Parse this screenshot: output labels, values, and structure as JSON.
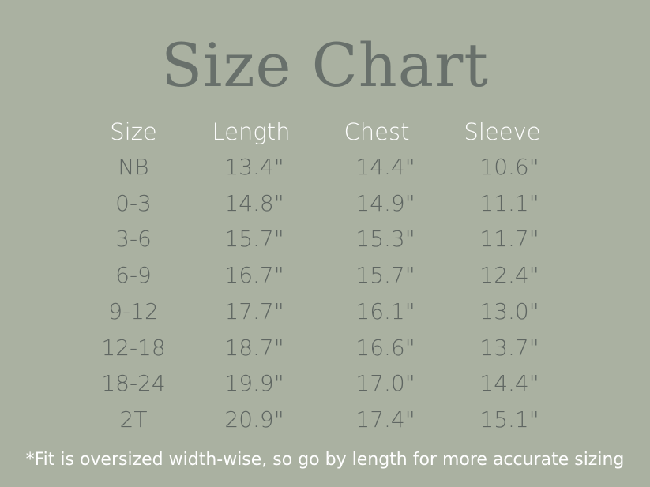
{
  "title": "Size Chart",
  "colors": {
    "background": "#aab1a1",
    "title": "#68706b",
    "header": "#ffffff",
    "values": "#5f6662"
  },
  "table": {
    "headers": [
      "Size",
      "Length",
      "Chest",
      "Sleeve"
    ],
    "rows": [
      [
        "NB",
        "13.4\"",
        "14.4\"",
        "10.6\""
      ],
      [
        "0-3",
        "14.8\"",
        "14.9\"",
        "11.1\""
      ],
      [
        "3-6",
        "15.7\"",
        "15.3\"",
        "11.7\""
      ],
      [
        "6-9",
        "16.7\"",
        "15.7\"",
        "12.4\""
      ],
      [
        "9-12",
        "17.7\"",
        "16.1\"",
        "13.0\""
      ],
      [
        "12-18",
        "18.7\"",
        "16.6\"",
        "13.7\""
      ],
      [
        "18-24",
        "19.9\"",
        "17.0\"",
        "14.4\""
      ],
      [
        "2T",
        "20.9\"",
        "17.4\"",
        "15.1\""
      ]
    ]
  },
  "footnote": "*Fit is oversized width-wise, so go by length for more accurate sizing"
}
